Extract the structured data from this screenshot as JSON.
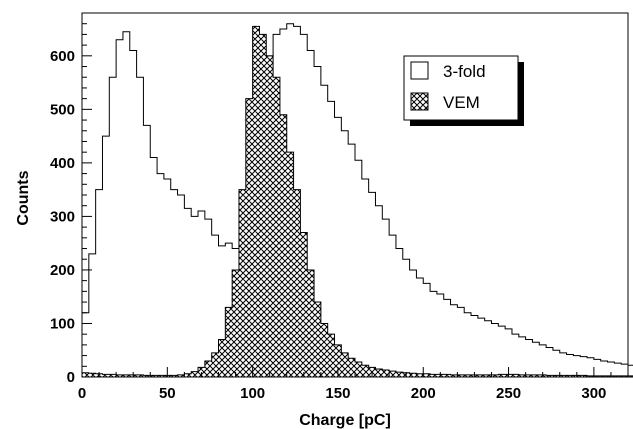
{
  "chart_data": {
    "type": "histogram",
    "title": "",
    "xlabel": "Charge [pC]",
    "ylabel": "Counts",
    "xlim": [
      0,
      320
    ],
    "ylim": [
      0,
      680
    ],
    "x_ticks": [
      0,
      50,
      100,
      150,
      200,
      250,
      300
    ],
    "y_ticks": [
      0,
      100,
      200,
      300,
      400,
      500,
      600
    ],
    "bin_width": 4,
    "grid": false,
    "legend_position": "top-right",
    "series": [
      {
        "name": "3-fold",
        "style": "outline",
        "values": [
          120,
          230,
          350,
          450,
          560,
          630,
          645,
          610,
          560,
          470,
          410,
          380,
          370,
          350,
          340,
          315,
          300,
          310,
          295,
          265,
          245,
          250,
          240,
          245,
          270,
          320,
          440,
          600,
          640,
          650,
          660,
          655,
          640,
          610,
          580,
          545,
          515,
          485,
          460,
          435,
          405,
          370,
          345,
          320,
          295,
          265,
          240,
          220,
          200,
          185,
          175,
          160,
          155,
          145,
          135,
          130,
          120,
          115,
          110,
          105,
          100,
          95,
          90,
          80,
          75,
          70,
          65,
          60,
          55,
          50,
          45,
          42,
          40,
          38,
          36,
          33,
          30,
          28,
          26,
          24,
          22,
          20,
          18,
          16,
          14,
          12,
          10,
          8,
          6,
          5,
          4,
          3,
          2,
          1,
          0,
          0,
          0,
          0,
          0,
          0
        ]
      },
      {
        "name": "VEM",
        "style": "crosshatch",
        "values": [
          8,
          7,
          6,
          5,
          5,
          4,
          4,
          4,
          4,
          3,
          3,
          3,
          3,
          3,
          4,
          6,
          10,
          18,
          30,
          45,
          70,
          130,
          200,
          350,
          520,
          655,
          640,
          600,
          560,
          490,
          420,
          350,
          270,
          200,
          140,
          100,
          80,
          60,
          45,
          35,
          28,
          22,
          18,
          15,
          13,
          11,
          9,
          8,
          7,
          6,
          6,
          5,
          5,
          5,
          4,
          4,
          4,
          4,
          4,
          4,
          4,
          5,
          5,
          5,
          4,
          4,
          4,
          4,
          3,
          3,
          3,
          3,
          3,
          3,
          2,
          2,
          2,
          2,
          2,
          2,
          2,
          2,
          1,
          1,
          1,
          1,
          1,
          1,
          1,
          1,
          1,
          0,
          0,
          0,
          0,
          0,
          0,
          0,
          0,
          0
        ]
      }
    ]
  }
}
